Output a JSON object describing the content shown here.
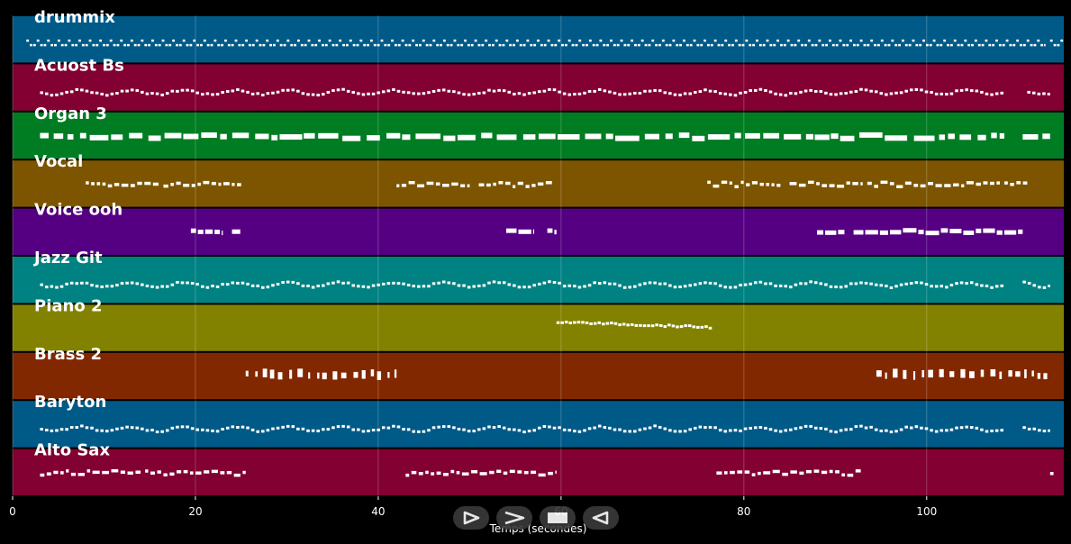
{
  "chart_data": {
    "type": "piano-roll",
    "xlabel": "Temps (secondes)",
    "xlim": [
      0,
      115
    ],
    "xticks": [
      0,
      20,
      40,
      60,
      80,
      100
    ],
    "grid": true,
    "tracks": [
      {
        "name": "drummix",
        "color": "#005a87",
        "pattern": "drums",
        "segments": [
          [
            1.5,
            113
          ],
          [
            113.5,
            115
          ]
        ]
      },
      {
        "name": "Acuost Bs",
        "color": "#820032",
        "pattern": "wave",
        "segments": [
          [
            3,
            108.5
          ],
          [
            111,
            113.5
          ]
        ]
      },
      {
        "name": "Organ 3",
        "color": "#007d23",
        "pattern": "blocks",
        "segments": [
          [
            3,
            108.5
          ],
          [
            110.5,
            113.5
          ]
        ]
      },
      {
        "name": "Vocal",
        "color": "#7d5500",
        "pattern": "phrases",
        "segments": [
          [
            8,
            16
          ],
          [
            16.5,
            25
          ],
          [
            42,
            50
          ],
          [
            51,
            59
          ],
          [
            76,
            84
          ],
          [
            85,
            93
          ],
          [
            93.5,
            108
          ],
          [
            108.5,
            111
          ]
        ]
      },
      {
        "name": "Voice ooh",
        "color": "#550082",
        "pattern": "chords",
        "segments": [
          [
            19.5,
            23
          ],
          [
            24,
            25
          ],
          [
            54,
            57
          ],
          [
            58.5,
            59.5
          ],
          [
            88,
            91
          ],
          [
            92,
            110.5
          ]
        ]
      },
      {
        "name": "Jazz Git",
        "color": "#008282",
        "pattern": "wave",
        "segments": [
          [
            3,
            108.5
          ],
          [
            110.5,
            113.5
          ]
        ]
      },
      {
        "name": "Piano 2",
        "color": "#828200",
        "pattern": "descending",
        "segments": [
          [
            59.5,
            76.5
          ]
        ]
      },
      {
        "name": "Brass 2",
        "color": "#822800",
        "pattern": "stabs",
        "segments": [
          [
            25.5,
            42
          ],
          [
            94.5,
            113.5
          ]
        ]
      },
      {
        "name": "Baryton",
        "color": "#005a87",
        "pattern": "wave",
        "segments": [
          [
            3,
            108.5
          ],
          [
            110.5,
            113.5
          ]
        ]
      },
      {
        "name": "Alto Sax",
        "color": "#820032",
        "pattern": "phrases",
        "segments": [
          [
            3,
            14
          ],
          [
            14.5,
            25.5
          ],
          [
            43,
            59.5
          ],
          [
            77,
            93
          ],
          [
            113.5,
            114
          ]
        ]
      }
    ]
  },
  "controls": [
    {
      "name": "play-icon"
    },
    {
      "name": "fast-forward-icon"
    },
    {
      "name": "stop-icon"
    },
    {
      "name": "rewind-icon"
    }
  ]
}
